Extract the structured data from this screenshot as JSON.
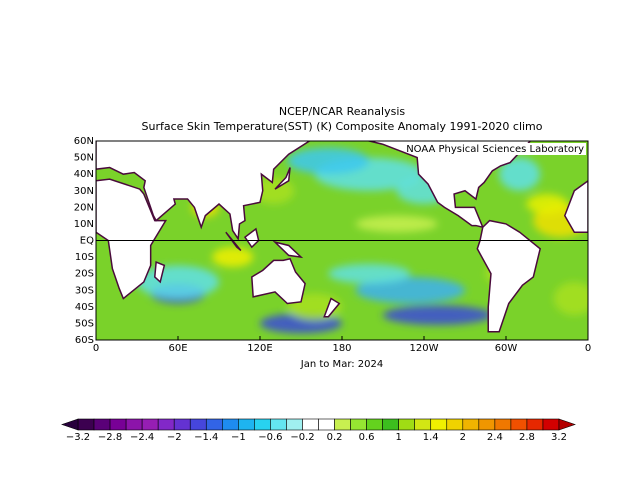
{
  "header": {
    "title": "NCEP/NCAR Reanalysis",
    "subtitle": "Surface Skin Temperature(SST) (K) Composite Anomaly 1991-2020 climo"
  },
  "map": {
    "credit": "NOAA Physical Sciences Laboratory",
    "lat_labels": [
      "60N",
      "50N",
      "40N",
      "30N",
      "20N",
      "10N",
      "EQ",
      "10S",
      "20S",
      "30S",
      "40S",
      "50S",
      "60S"
    ],
    "lon_labels": [
      "0",
      "60E",
      "120E",
      "180",
      "120W",
      "60W",
      "0"
    ],
    "period": "Jan to Mar: 2024"
  },
  "colorbar": {
    "ticks": [
      {
        "value": -3.2,
        "label": "−3.2"
      },
      {
        "value": -2.8,
        "label": "−2.8"
      },
      {
        "value": -2.4,
        "label": "−2.4"
      },
      {
        "value": -2,
        "label": "−2"
      },
      {
        "value": -1.4,
        "label": "−1.4"
      },
      {
        "value": -1,
        "label": "−1"
      },
      {
        "value": -0.6,
        "label": "−0.6"
      },
      {
        "value": -0.2,
        "label": "−0.2"
      },
      0.2,
      0.6,
      1,
      1.4,
      2,
      2.4,
      2.8,
      3.2
    ],
    "colors": [
      "#3c0050",
      "#5a0078",
      "#780096",
      "#8c14aa",
      "#961eb4",
      "#8228c8",
      "#6432d2",
      "#4646dc",
      "#3264e6",
      "#1e8cf0",
      "#1eb4f0",
      "#28d2f0",
      "#64e6f0",
      "#a0f0f0",
      "#ffffff",
      "#ffffff",
      "#c8f050",
      "#96e632",
      "#64d21e",
      "#3cbe1e",
      "#a0dc14",
      "#d2e614",
      "#f0f000",
      "#f0d200",
      "#f0b400",
      "#f09600",
      "#f07800",
      "#f05000",
      "#e62800",
      "#d20000"
    ],
    "under_color": "#28003c",
    "over_color": "#b40000"
  }
}
